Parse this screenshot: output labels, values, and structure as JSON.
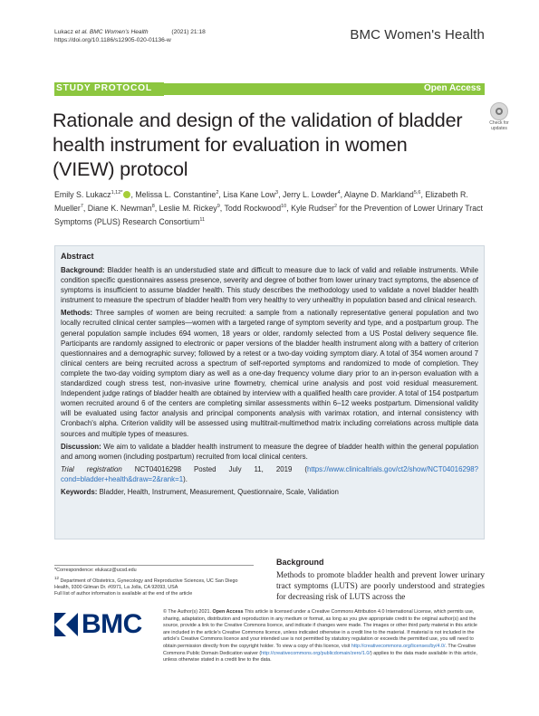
{
  "header": {
    "citation_authors": "Lukacz",
    "citation_etal": "et al. BMC Women's Health",
    "citation_year": "(2021) 21:18",
    "doi": "https://doi.org/10.1186/s12905-020-01136-w",
    "journal": "BMC Women's Health"
  },
  "band": {
    "article_type": "STUDY PROTOCOL",
    "access": "Open Access"
  },
  "title": "Rationale and design of the validation of bladder health instrument for evaluation in women (VIEW) protocol",
  "check_updates": {
    "line1": "Check for",
    "line2": "updates"
  },
  "authors_html_parts": {
    "a1": "Emily S. Lukacz",
    "a1sup": "1,12*",
    "rest1": ", Melissa L. Constantine",
    "s2": "2",
    "rest2": ", Lisa Kane Low",
    "s3": "3",
    "rest3": ", Jerry L. Lowder",
    "s4": "4",
    "rest4": ", Alayne D. Markland",
    "s5": "5,6",
    "rest5": ", Elizabeth R. Mueller",
    "s6": "7",
    "rest6": ", Diane K. Newman",
    "s7": "8",
    "rest7": ", Leslie M. Rickey",
    "s8": "9",
    "rest8": ", Todd Rockwood",
    "s9": "10",
    "rest9": ", Kyle Rudser",
    "s10": "2",
    "rest10": " for the Prevention of Lower Urinary Tract Symptoms (PLUS) Research Consortium",
    "s11": "11"
  },
  "abstract": {
    "heading": "Abstract",
    "background_label": "Background:",
    "background": "Bladder health is an understudied state and difficult to measure due to lack of valid and reliable instruments. While condition specific questionnaires assess presence, severity and degree of bother from lower urinary tract symptoms, the absence of symptoms is insufficient to assume bladder health. This study describes the methodology used to validate a novel bladder health instrument to measure the spectrum of bladder health from very healthy to very unhealthy in population based and clinical research.",
    "methods_label": "Methods:",
    "methods": "Three samples of women are being recruited: a sample from a nationally representative general population and two locally recruited clinical center samples—women with a targeted range of symptom severity and type, and a postpartum group. The general population sample includes 694 women, 18 years or older, randomly selected from a US Postal delivery sequence file. Participants are randomly assigned to electronic or paper versions of the bladder health instrument along with a battery of criterion questionnaires and a demographic survey; followed by a retest or a two-day voiding symptom diary. A total of 354 women around 7 clinical centers are being recruited across a spectrum of self-reported symptoms and randomized to mode of completion. They complete the two-day voiding symptom diary as well as a one-day frequency volume diary prior to an in-person evaluation with a standardized cough stress test, non-invasive urine flowmetry, chemical urine analysis and post void residual measurement. Independent judge ratings of bladder health are obtained by interview with a qualified health care provider. A total of 154 postpartum women recruited around 6 of the centers are completing similar assessments within 6–12 weeks postpartum. Dimensional validity will be evaluated using factor analysis and principal components analysis with varimax rotation, and internal consistency with Cronbach's alpha. Criterion validity will be assessed using multitrait-multimethod matrix including correlations across multiple data sources and multiple types of measures.",
    "discussion_label": "Discussion:",
    "discussion": "We aim to validate a bladder health instrument to measure the degree of bladder health within the general population and among women (including postpartum) recruited from local clinical centers.",
    "trial_label": "Trial registration",
    "trial_text": " NCT04016298 Posted July 11, 2019 (",
    "trial_link": "https://www.clinicaltrials.gov/ct2/show/NCT04016298?cond=bladder+health&draw=2&rank=1",
    "trial_end": ").",
    "keywords_label": "Keywords:",
    "keywords": "Bladder, Health, Instrument, Measurement, Questionnaire, Scale, Validation"
  },
  "correspondence": {
    "email": "*Correspondence: elukacz@ucsd.edu",
    "affil1": "Department of Obstetrics, Gynecology and Reproductive Sciences, UC San Diego Health, 9300 Gilman Dr. #0971, La Jolla, CA 92093, USA",
    "affil_sup": "12",
    "full_list": "Full list of author information is available at the end of the article"
  },
  "background_section": {
    "heading": "Background",
    "text": "Methods to promote bladder health and prevent lower urinary tract symptoms (LUTS) are poorly understood and strategies for decreasing risk of LUTS across the"
  },
  "logo": {
    "text": "BMC"
  },
  "license": {
    "lead": "© The Author(s) 2021.",
    "oa": "Open Access",
    "text1": " This article is licensed under a Creative Commons Attribution 4.0 International License, which permits use, sharing, adaptation, distribution and reproduction in any medium or format, as long as you give appropriate credit to the original author(s) and the source, provide a link to the Creative Commons licence, and indicate if changes were made. The images or other third party material in this article are included in the article's Creative Commons licence, unless indicated otherwise in a credit line to the material. If material is not included in the article's Creative Commons licence and your intended use is not permitted by statutory regulation or exceeds the permitted use, you will need to obtain permission directly from the copyright holder. To view a copy of this licence, visit ",
    "link1": "http://creativecommons.org/licenses/by/4.0/",
    "text2": ". The Creative Commons Public Domain Dedication waiver (",
    "link2": "http://creativecommons.org/publicdomain/zero/1.0/",
    "text3": ") applies to the data made available in this article, unless otherwise stated in a credit line to the data."
  }
}
